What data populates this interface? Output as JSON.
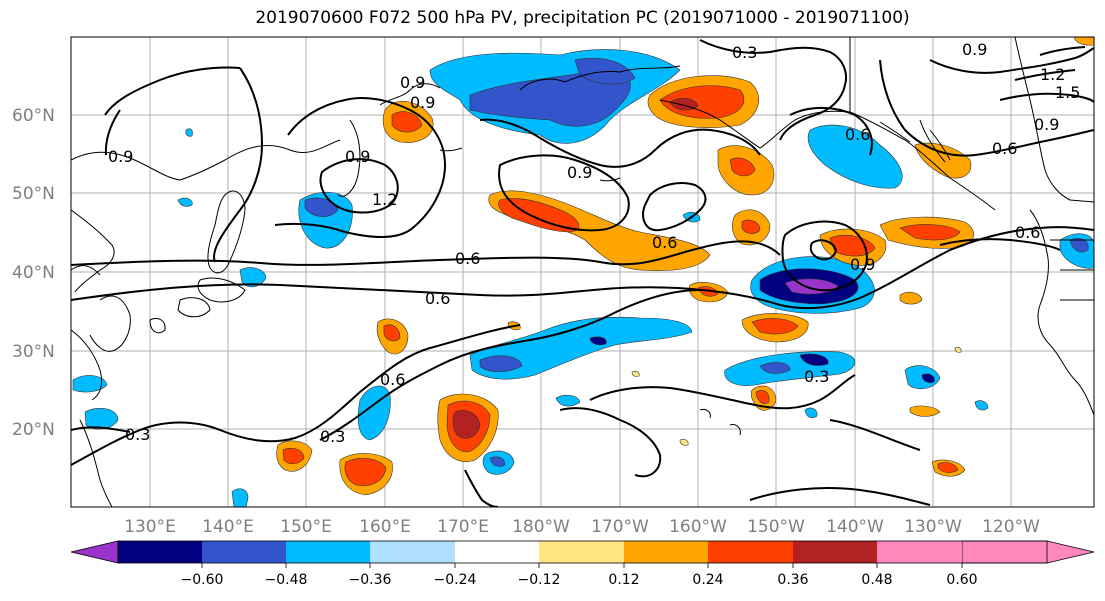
{
  "title": "2019070600 F072 500 hPa PV, precipitation PC (2019071000 - 2019071100)",
  "lat_labels": [
    "60°N",
    "50°N",
    "40°N",
    "30°N",
    "20°N"
  ],
  "lon_labels": [
    "130°E",
    "140°E",
    "150°E",
    "160°E",
    "170°E",
    "180°W",
    "170°W",
    "160°W",
    "150°W",
    "140°W",
    "130°W",
    "120°W"
  ],
  "colorbar": {
    "ticks": [
      "−0.60",
      "−0.48",
      "−0.36",
      "−0.24",
      "−0.12",
      "0.12",
      "0.24",
      "0.36",
      "0.48",
      "0.60"
    ],
    "colors": [
      "#9933cc",
      "#000080",
      "#3355cc",
      "#00bbff",
      "#b0e0ff",
      "#ffffff",
      "#ffe680",
      "#ffa500",
      "#ff4000",
      "#b22222",
      "#ff88bb"
    ]
  },
  "contour_labels": [
    "0.3",
    "0.9",
    "0.9",
    "0.9",
    "0.6",
    "0.9",
    "1.2",
    "0.9",
    "0.6",
    "0.6",
    "0.6",
    "0.6",
    "0.9",
    "0.3",
    "0.3",
    "0.6",
    "0.3",
    "0.9",
    "0.9",
    "0.6",
    "1.2",
    "1.5"
  ]
}
